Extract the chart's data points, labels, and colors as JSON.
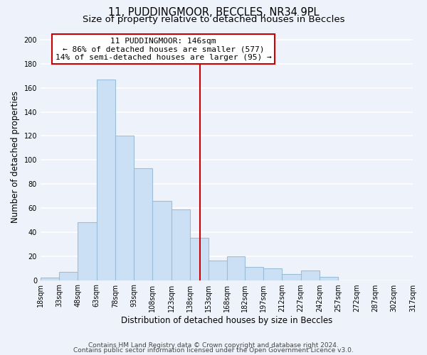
{
  "title": "11, PUDDINGMOOR, BECCLES, NR34 9PL",
  "subtitle": "Size of property relative to detached houses in Beccles",
  "xlabel": "Distribution of detached houses by size in Beccles",
  "ylabel": "Number of detached properties",
  "bar_values": [
    2,
    7,
    48,
    167,
    120,
    93,
    66,
    59,
    35,
    16,
    20,
    11,
    10,
    5,
    8,
    3,
    0,
    0,
    0,
    0
  ],
  "bin_edges": [
    18,
    33,
    48,
    63,
    78,
    93,
    108,
    123,
    138,
    153,
    168,
    182,
    197,
    212,
    227,
    242,
    257,
    272,
    287,
    302,
    317
  ],
  "tick_labels": [
    "18sqm",
    "33sqm",
    "48sqm",
    "63sqm",
    "78sqm",
    "93sqm",
    "108sqm",
    "123sqm",
    "138sqm",
    "153sqm",
    "168sqm",
    "182sqm",
    "197sqm",
    "212sqm",
    "227sqm",
    "242sqm",
    "257sqm",
    "272sqm",
    "287sqm",
    "302sqm",
    "317sqm"
  ],
  "bar_color": "#cce0f5",
  "bar_edge_color": "#9bbdd6",
  "vline_x": 146,
  "vline_color": "#cc0000",
  "annotation_title": "11 PUDDINGMOOR: 146sqm",
  "annotation_line1": "← 86% of detached houses are smaller (577)",
  "annotation_line2": "14% of semi-detached houses are larger (95) →",
  "annotation_box_color": "#ffffff",
  "annotation_box_edge": "#cc0000",
  "ylim": [
    0,
    205
  ],
  "yticks": [
    0,
    20,
    40,
    60,
    80,
    100,
    120,
    140,
    160,
    180,
    200
  ],
  "footer_line1": "Contains HM Land Registry data © Crown copyright and database right 2024.",
  "footer_line2": "Contains public sector information licensed under the Open Government Licence v3.0.",
  "bg_color": "#eef2fa",
  "grid_color": "#ffffff",
  "title_fontsize": 10.5,
  "subtitle_fontsize": 9.5,
  "axis_label_fontsize": 8.5,
  "tick_fontsize": 7,
  "footer_fontsize": 6.5,
  "annotation_fontsize": 8
}
